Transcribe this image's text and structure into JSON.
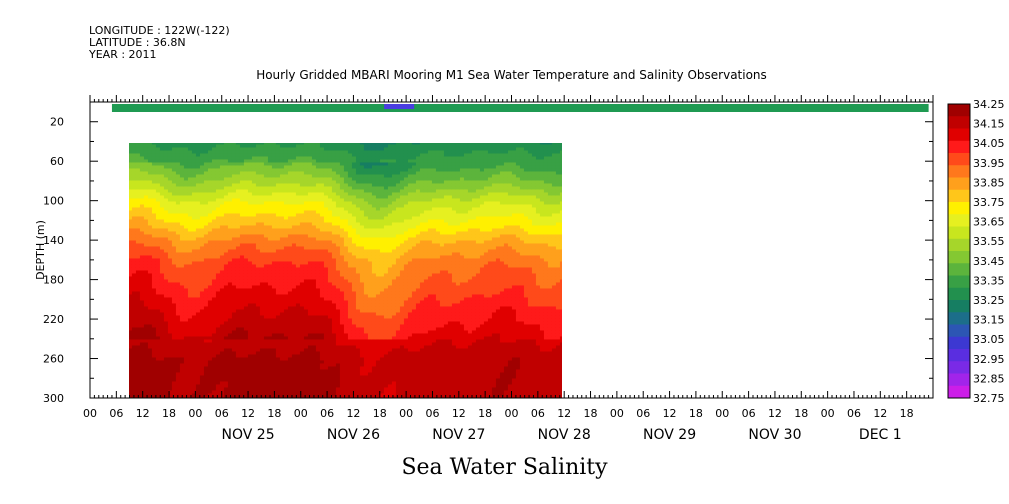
{
  "header": {
    "longitude": "LONGITUDE : 122W(-122)",
    "latitude": "LATITUDE : 36.8N",
    "year": "YEAR : 2011"
  },
  "chart_data": {
    "type": "heatmap",
    "title": "Hourly Gridded MBARI Mooring M1 Sea Water Temperature and Salinity Observations",
    "bottom_title": "Sea Water Salinity",
    "ylabel": "DEPTH (m)",
    "ylim": [
      300,
      0
    ],
    "y_reversed": true,
    "y_ticks": [
      20,
      60,
      100,
      140,
      180,
      220,
      260,
      300
    ],
    "x_range_hours": [
      "2011-11-24T00:00",
      "2011-12-02T00:00"
    ],
    "x_tick_labels": [
      "00",
      "06",
      "12",
      "18"
    ],
    "x_day_labels": [
      "NOV 25",
      "NOV 26",
      "NOV 27",
      "NOV 28",
      "NOV 29",
      "NOV 30",
      "DEC  1"
    ],
    "data_extent": {
      "surface_layer": {
        "depth": 10,
        "time_start": "2011-11-24T05:00",
        "time_end": "2011-12-01T23:00",
        "value": 33.3
      },
      "profile": {
        "depth_min": 40,
        "depth_max": 300,
        "time_start": "2011-11-24T05:00",
        "time_end": "2011-11-28T18:00"
      }
    },
    "profile_depths": [
      40,
      60,
      80,
      100,
      120,
      140,
      160,
      180,
      200,
      220,
      240,
      260,
      280,
      300
    ],
    "profile_mean_salinity": [
      33.28,
      33.36,
      33.48,
      33.62,
      33.72,
      33.84,
      33.93,
      33.98,
      34.03,
      34.08,
      34.13,
      34.18,
      34.18,
      34.18
    ],
    "colorbar": {
      "levels": [
        "34.25",
        "34.15",
        "34.05",
        "33.95",
        "33.85",
        "33.75",
        "33.65",
        "33.55",
        "33.45",
        "33.35",
        "33.25",
        "33.15",
        "33.05",
        "32.95",
        "32.85",
        "32.75"
      ],
      "colors": [
        "#a00000",
        "#c00000",
        "#e00000",
        "#ff1a1a",
        "#ff4a1a",
        "#ff781c",
        "#ffa01c",
        "#ffc61a",
        "#fff000",
        "#e6f020",
        "#c8e61e",
        "#a6d62a",
        "#84c832",
        "#5cb43c",
        "#38a045",
        "#22904e",
        "#167e62",
        "#1c6e8a",
        "#2c56b4",
        "#3c38d2",
        "#5a2ee0",
        "#7a2ae6",
        "#a224ea",
        "#cc1ee8"
      ]
    }
  }
}
